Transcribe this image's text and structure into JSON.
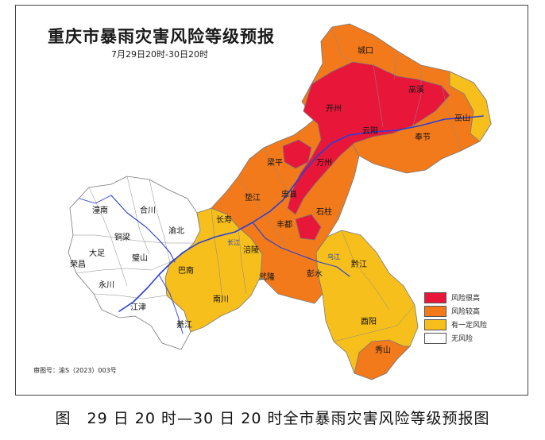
{
  "title": "重庆市暴雨灾害风险等级预报",
  "subtitle": "7月29日20时-30日20时",
  "approval_number": "审图号：渝S（2023）003号",
  "caption": "图　29 日 20 时—30 日 20 时全市暴雨灾害风险等级预报图",
  "colors": {
    "very_high": "#e8173a",
    "high": "#f27a1b",
    "some": "#f6bf1c",
    "none": "#ffffff",
    "river": "#2a3fd6",
    "border": "#7a7a7a"
  },
  "legend": [
    {
      "label": "风险很高",
      "color": "#e8173a"
    },
    {
      "label": "风险较高",
      "color": "#f27a1b"
    },
    {
      "label": "有一定风险",
      "color": "#f6bf1c"
    },
    {
      "label": "无风险",
      "color": "#ffffff"
    }
  ],
  "places": [
    {
      "name": "城口",
      "cls": ""
    },
    {
      "name": "巫溪",
      "cls": ""
    },
    {
      "name": "开州",
      "cls": ""
    },
    {
      "name": "云阳",
      "cls": ""
    },
    {
      "name": "奉节",
      "cls": ""
    },
    {
      "name": "巫山",
      "cls": ""
    },
    {
      "name": "万州",
      "cls": ""
    },
    {
      "name": "梁平",
      "cls": ""
    },
    {
      "name": "忠县",
      "cls": ""
    },
    {
      "name": "垫江",
      "cls": ""
    },
    {
      "name": "石柱",
      "cls": ""
    },
    {
      "name": "丰都",
      "cls": ""
    },
    {
      "name": "长寿",
      "cls": ""
    },
    {
      "name": "涪陵",
      "cls": ""
    },
    {
      "name": "武隆",
      "cls": ""
    },
    {
      "name": "彭水",
      "cls": ""
    },
    {
      "name": "黔江",
      "cls": ""
    },
    {
      "name": "酉阳",
      "cls": ""
    },
    {
      "name": "秀山",
      "cls": ""
    },
    {
      "name": "南川",
      "cls": ""
    },
    {
      "name": "綦江",
      "cls": ""
    },
    {
      "name": "江津",
      "cls": ""
    },
    {
      "name": "永川",
      "cls": ""
    },
    {
      "name": "荣昌",
      "cls": ""
    },
    {
      "name": "大足",
      "cls": ""
    },
    {
      "name": "铜梁",
      "cls": ""
    },
    {
      "name": "潼南",
      "cls": ""
    },
    {
      "name": "合川",
      "cls": ""
    },
    {
      "name": "璧山",
      "cls": ""
    },
    {
      "name": "渝北",
      "cls": ""
    },
    {
      "name": "巴南",
      "cls": ""
    },
    {
      "name": "长江",
      "cls": "river"
    },
    {
      "name": "乌江",
      "cls": "river"
    }
  ]
}
